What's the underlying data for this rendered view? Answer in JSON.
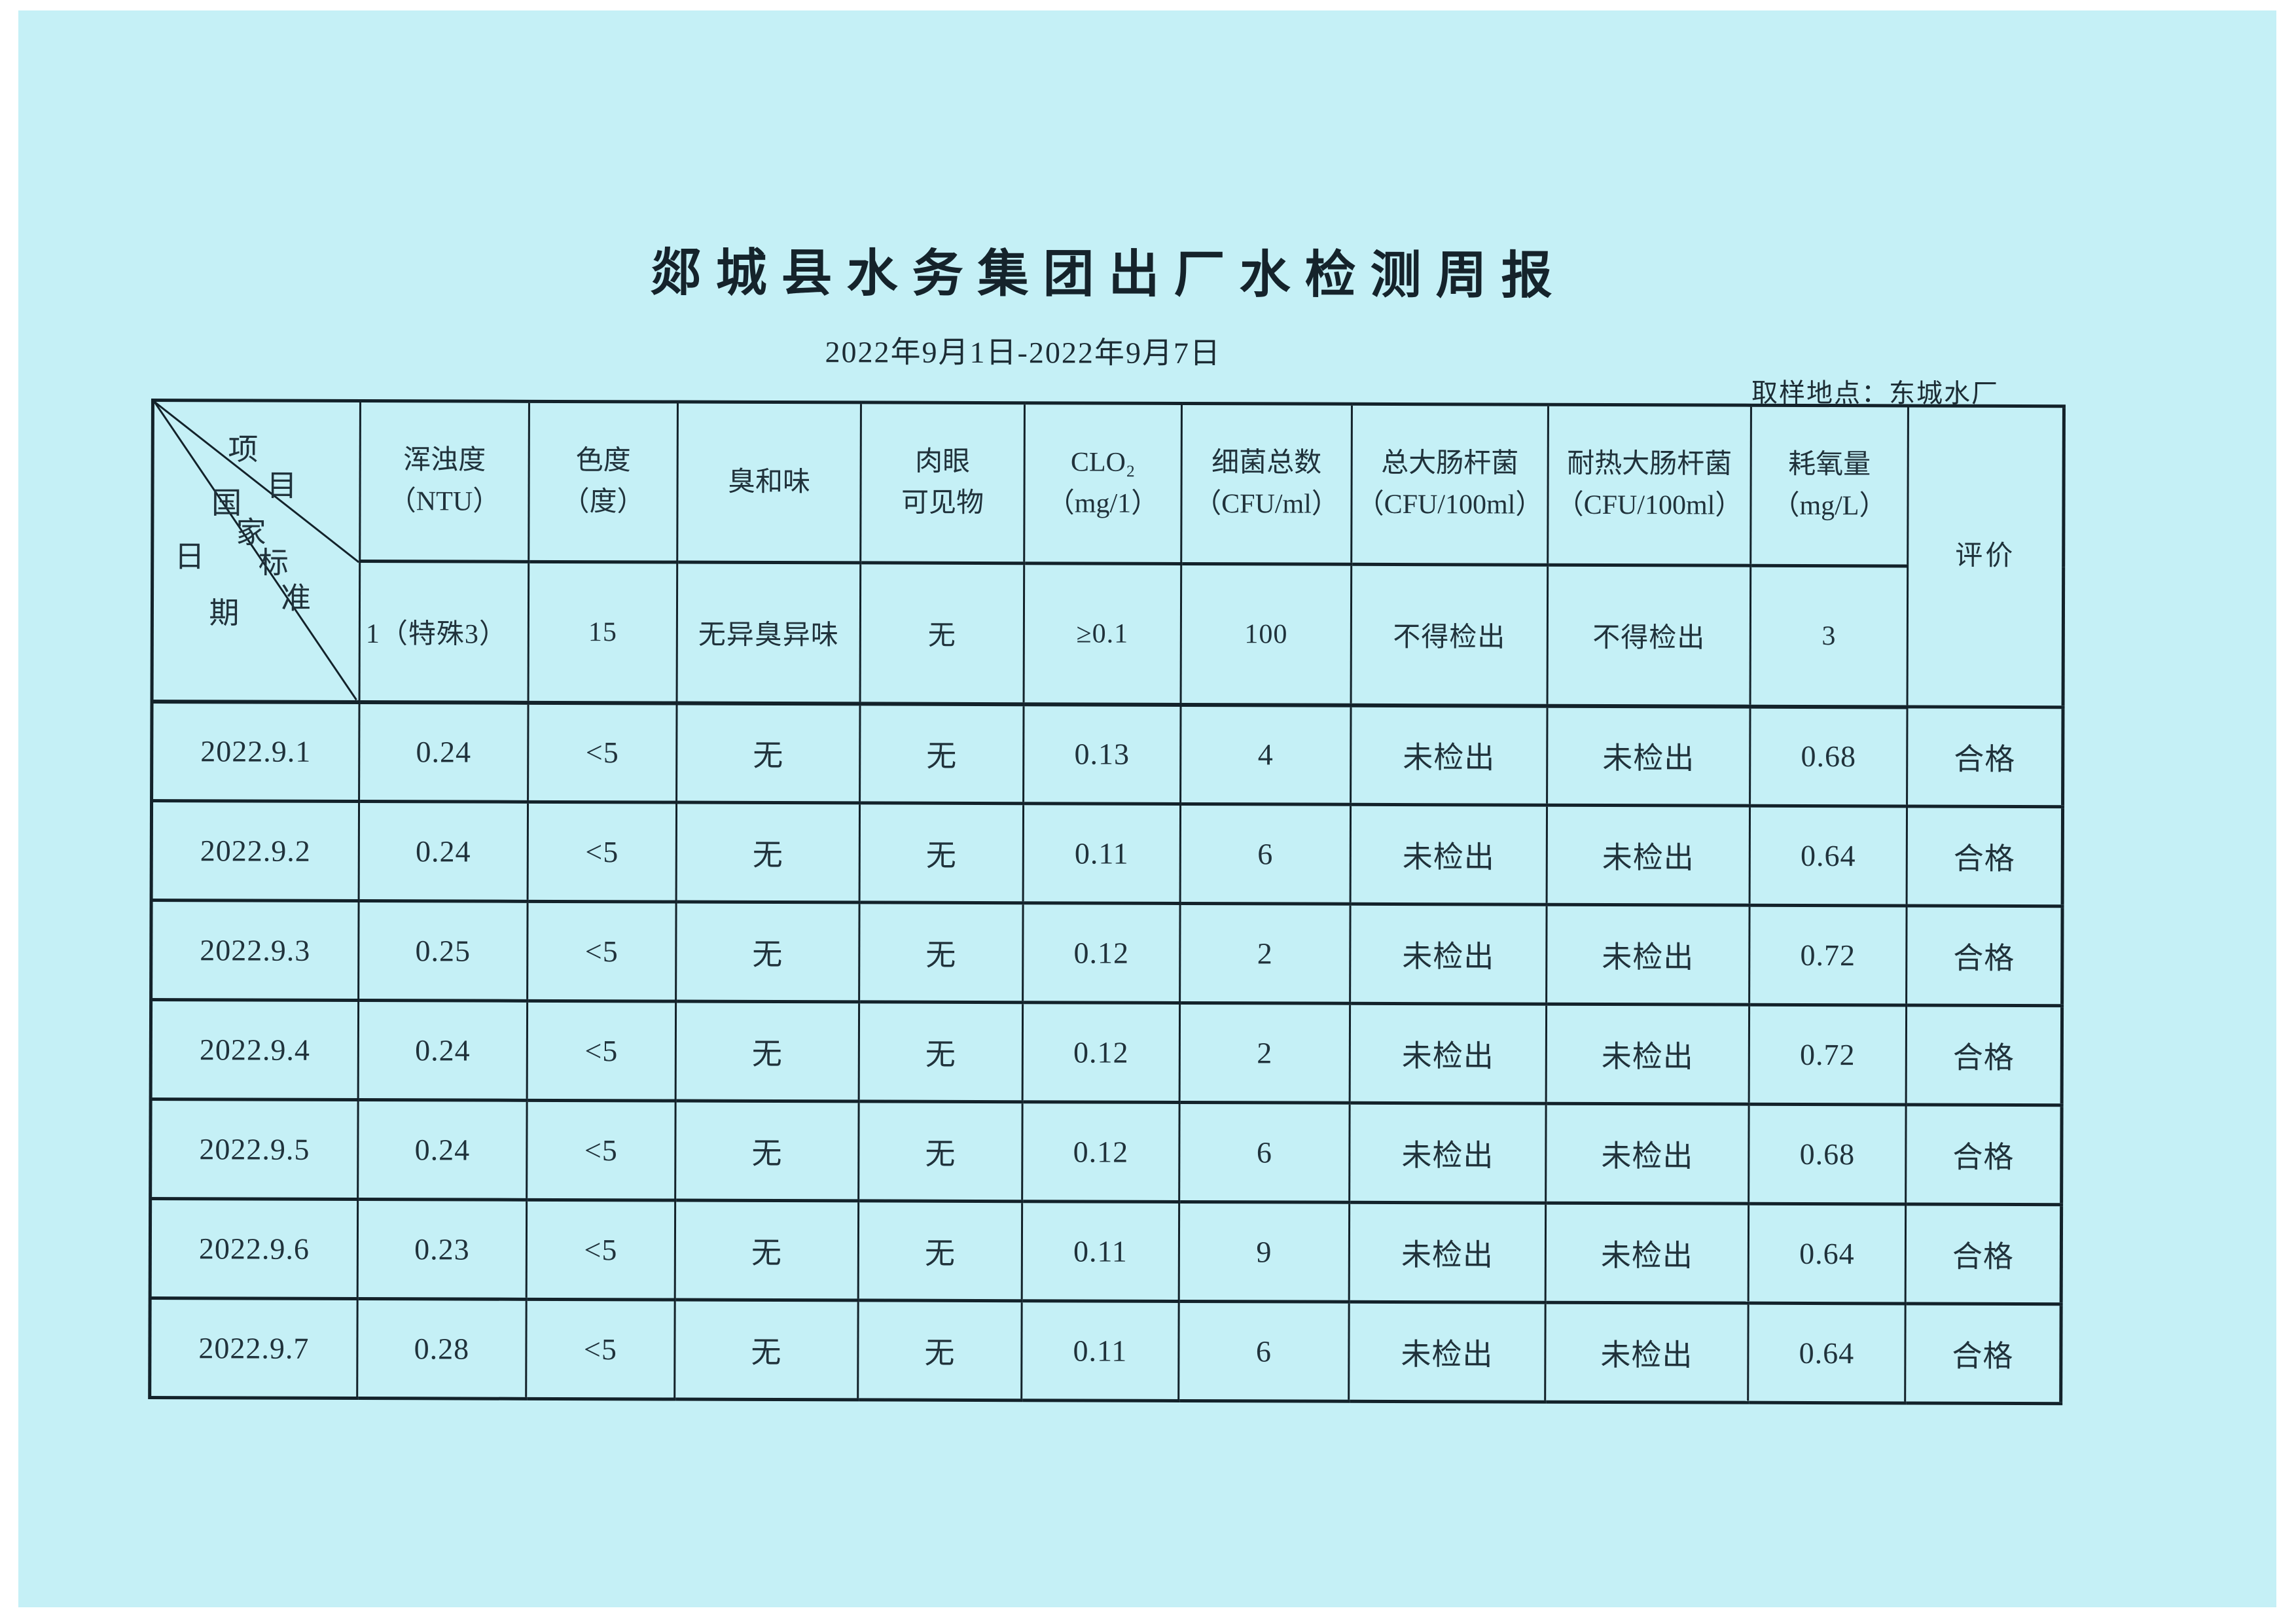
{
  "page": {
    "title": "郯城县水务集团出厂水检测周报",
    "date_range": "2022年9月1日-2022年9月7日",
    "sampling_location": "取样地点：东城水厂"
  },
  "colors": {
    "paper": "#c5f0f6",
    "ink": "#20323b",
    "table_line": "#13222a"
  },
  "table": {
    "diagonal": {
      "top_label": "项目",
      "middle_label": "国家标准",
      "bottom_label": "日期"
    },
    "columns": [
      {
        "label": "浑浊度\n（NTU）",
        "standard": "1（特殊3）"
      },
      {
        "label": "色度\n（度）",
        "standard": "15"
      },
      {
        "label": "臭和味",
        "standard": "无异臭异味"
      },
      {
        "label": "肉眼\n可见物",
        "standard": "无"
      },
      {
        "label": "CLO₂\n（mg/1）",
        "standard": "≥0.1"
      },
      {
        "label": "细菌总数\n（CFU/ml）",
        "standard": "100"
      },
      {
        "label": "总大肠杆菌\n（CFU/100ml）",
        "standard": "不得检出"
      },
      {
        "label": "耐热大肠杆菌\n（CFU/100ml）",
        "standard": "不得检出"
      },
      {
        "label": "耗氧量\n（mg/L）",
        "standard": "3"
      }
    ],
    "evaluation_label": "评价",
    "rows": [
      {
        "date": "2022.9.1",
        "values": [
          "0.24",
          "<5",
          "无",
          "无",
          "0.13",
          "4",
          "未检出",
          "未检出",
          "0.68"
        ],
        "evaluation": "合格"
      },
      {
        "date": "2022.9.2",
        "values": [
          "0.24",
          "<5",
          "无",
          "无",
          "0.11",
          "6",
          "未检出",
          "未检出",
          "0.64"
        ],
        "evaluation": "合格"
      },
      {
        "date": "2022.9.3",
        "values": [
          "0.25",
          "<5",
          "无",
          "无",
          "0.12",
          "2",
          "未检出",
          "未检出",
          "0.72"
        ],
        "evaluation": "合格"
      },
      {
        "date": "2022.9.4",
        "values": [
          "0.24",
          "<5",
          "无",
          "无",
          "0.12",
          "2",
          "未检出",
          "未检出",
          "0.72"
        ],
        "evaluation": "合格"
      },
      {
        "date": "2022.9.5",
        "values": [
          "0.24",
          "<5",
          "无",
          "无",
          "0.12",
          "6",
          "未检出",
          "未检出",
          "0.68"
        ],
        "evaluation": "合格"
      },
      {
        "date": "2022.9.6",
        "values": [
          "0.23",
          "<5",
          "无",
          "无",
          "0.11",
          "9",
          "未检出",
          "未检出",
          "0.64"
        ],
        "evaluation": "合格"
      },
      {
        "date": "2022.9.7",
        "values": [
          "0.28",
          "<5",
          "无",
          "无",
          "0.11",
          "6",
          "未检出",
          "未检出",
          "0.64"
        ],
        "evaluation": "合格"
      }
    ]
  }
}
